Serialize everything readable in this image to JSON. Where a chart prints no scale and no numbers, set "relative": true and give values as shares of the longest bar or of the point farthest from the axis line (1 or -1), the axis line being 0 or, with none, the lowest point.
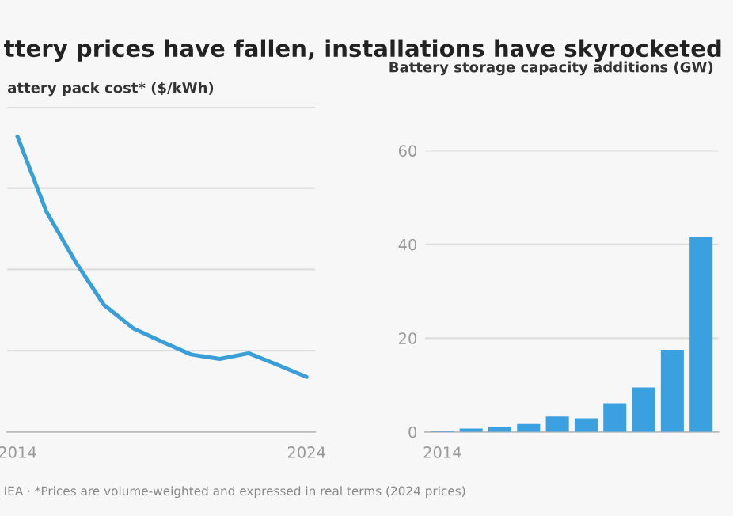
{
  "chart_data": [
    {
      "type": "line",
      "title": "ttery prices have fallen, installations have skyrocketed",
      "subtitle": "attery pack cost* ($/kWh)",
      "relative": true,
      "categories": [
        "2014",
        null,
        null,
        null,
        null,
        null,
        null,
        null,
        null,
        null,
        "2024"
      ],
      "series": [
        {
          "color": "#3a9fd8",
          "values": [
            1,
            0.746,
            0.577,
            0.429,
            0.351,
            0.305,
            0.262,
            0.247,
            0.266,
            0.227,
            0.186
          ]
        }
      ],
      "grid": "y",
      "marker": "none",
      "line_style": "solid",
      "annotations": [
        "IEA · *Prices are volume-weighted and expressed in real terms (2024 prices)"
      ]
    },
    {
      "type": "bar",
      "subtitle": "Battery storage capacity additions (GW)",
      "categories": [
        "2014",
        null,
        null,
        null,
        null,
        null,
        null,
        null,
        null,
        null
      ],
      "series": [
        {
          "color": "#3aa0e0",
          "values": [
            0.3,
            0.7,
            1.1,
            1.7,
            3.3,
            2.9,
            6.1,
            9.5,
            17.5,
            41.5
          ]
        }
      ],
      "ylim": [
        0,
        60
      ],
      "yticks": [
        0,
        20,
        40,
        60
      ],
      "grid": "y"
    }
  ]
}
